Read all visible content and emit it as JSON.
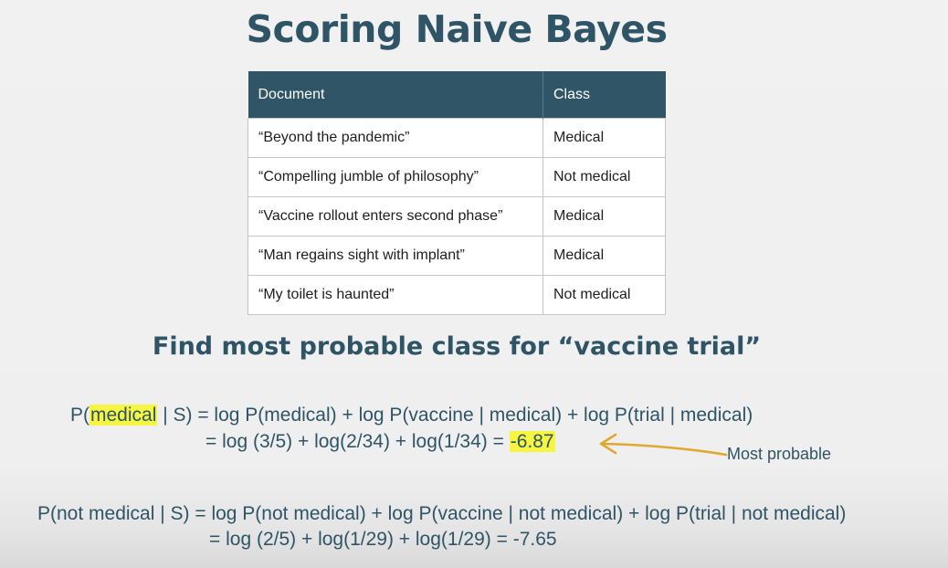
{
  "title": "Scoring Naive Bayes",
  "table": {
    "headers": [
      "Document",
      "Class"
    ],
    "rows": [
      {
        "document": "“Beyond the pandemic”",
        "class": "Medical"
      },
      {
        "document": "“Compelling jumble of philosophy”",
        "class": "Not medical"
      },
      {
        "document": "“Vaccine rollout enters second phase”",
        "class": "Medical"
      },
      {
        "document": "“Man regains sight with implant”",
        "class": "Medical"
      },
      {
        "document": "“My toilet is haunted”",
        "class": "Not medical"
      }
    ]
  },
  "subtitle": "Find most probable class for “vaccine trial”",
  "equation_medical": {
    "prefix": "P(",
    "highlight": "medical",
    "line1_rest": " | S) = log P(medical) + log P(vaccine | medical) + log P(trial | medical)",
    "line2": "= log (3/5) + log(2/34) + log(1/34) = ",
    "result": "-6.87"
  },
  "annotation": {
    "text": "Most probable",
    "arrow_color": "#e0a830"
  },
  "equation_not_medical": {
    "line1": "P(not medical | S) = log P(not medical) + log P(vaccine | not medical) + log P(trial | not medical)",
    "line2": "= log (2/5) + log(1/29) + log(1/29) = -7.65"
  },
  "colors": {
    "heading": "#2e5466",
    "table_header_bg": "#2f5566",
    "highlight": "#f5f542"
  }
}
